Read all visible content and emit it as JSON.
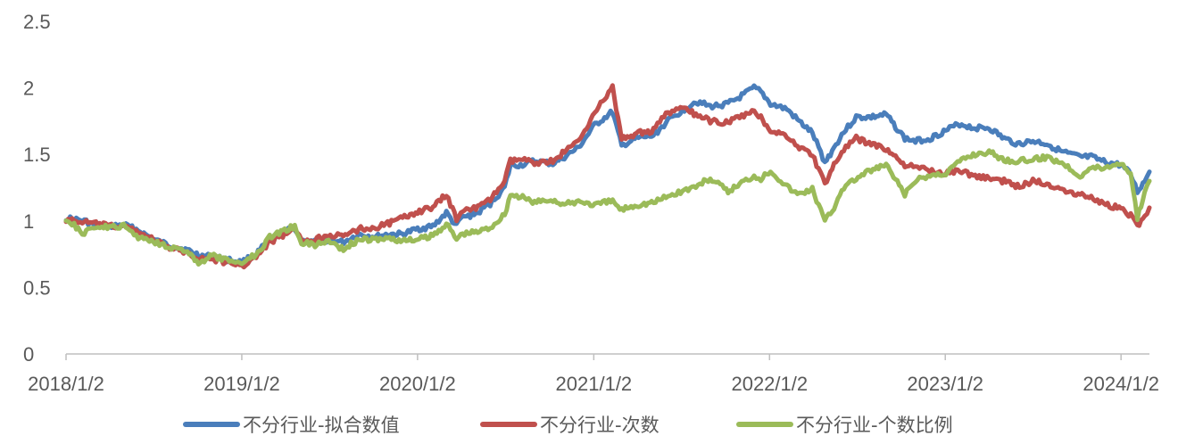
{
  "chart_data": {
    "type": "line",
    "title": "",
    "xlabel": "",
    "ylabel": "",
    "ylim": [
      0,
      2.5
    ],
    "yticks": [
      "0",
      "0.5",
      "1",
      "1.5",
      "2",
      "2.5"
    ],
    "xticks": [
      "2018/1/2",
      "2019/1/2",
      "2020/1/2",
      "2021/1/2",
      "2022/1/2",
      "2023/1/2",
      "2024/1/2"
    ],
    "xrange": [
      "2018/1/2",
      "2024/3/1"
    ],
    "grid": false,
    "legend": "bottom",
    "series": [
      {
        "name": "不分行业-拟合数值",
        "color": "#4A7EBB",
        "points": [
          [
            "2018/1/2",
            1.02
          ],
          [
            "2018/2/9",
            1.0
          ],
          [
            "2018/3/1",
            0.97
          ],
          [
            "2018/4/2",
            0.96
          ],
          [
            "2018/5/2",
            0.97
          ],
          [
            "2018/6/1",
            0.93
          ],
          [
            "2018/7/2",
            0.86
          ],
          [
            "2018/8/1",
            0.82
          ],
          [
            "2018/9/3",
            0.79
          ],
          [
            "2018/10/8",
            0.74
          ],
          [
            "2018/11/1",
            0.73
          ],
          [
            "2018/12/3",
            0.71
          ],
          [
            "2019/1/2",
            0.69
          ],
          [
            "2019/2/1",
            0.75
          ],
          [
            "2019/3/1",
            0.86
          ],
          [
            "2019/4/1",
            0.92
          ],
          [
            "2019/4/22",
            0.95
          ],
          [
            "2019/5/6",
            0.85
          ],
          [
            "2019/6/3",
            0.84
          ],
          [
            "2019/7/1",
            0.86
          ],
          [
            "2019/8/1",
            0.84
          ],
          [
            "2019/9/2",
            0.9
          ],
          [
            "2019/10/8",
            0.88
          ],
          [
            "2019/11/1",
            0.9
          ],
          [
            "2019/12/2",
            0.9
          ],
          [
            "2020/1/2",
            0.94
          ],
          [
            "2020/2/3",
            0.96
          ],
          [
            "2020/3/2",
            1.06
          ],
          [
            "2020/3/23",
            0.96
          ],
          [
            "2020/4/1",
            1.02
          ],
          [
            "2020/5/6",
            1.06
          ],
          [
            "2020/6/1",
            1.13
          ],
          [
            "2020/7/1",
            1.25
          ],
          [
            "2020/7/13",
            1.42
          ],
          [
            "2020/8/3",
            1.42
          ],
          [
            "2020/9/1",
            1.45
          ],
          [
            "2020/10/9",
            1.43
          ],
          [
            "2020/11/2",
            1.48
          ],
          [
            "2020/12/1",
            1.55
          ],
          [
            "2021/1/4",
            1.72
          ],
          [
            "2021/2/10",
            1.82
          ],
          [
            "2021/3/1",
            1.56
          ],
          [
            "2021/3/9",
            1.58
          ],
          [
            "2021/4/1",
            1.62
          ],
          [
            "2021/5/6",
            1.64
          ],
          [
            "2021/6/1",
            1.74
          ],
          [
            "2021/7/1",
            1.82
          ],
          [
            "2021/8/2",
            1.9
          ],
          [
            "2021/9/1",
            1.86
          ],
          [
            "2021/10/8",
            1.88
          ],
          [
            "2021/11/1",
            1.93
          ],
          [
            "2021/12/1",
            2.0
          ],
          [
            "2021/12/15",
            1.97
          ],
          [
            "2022/1/4",
            1.88
          ],
          [
            "2022/2/7",
            1.84
          ],
          [
            "2022/3/1",
            1.76
          ],
          [
            "2022/4/1",
            1.66
          ],
          [
            "2022/4/27",
            1.44
          ],
          [
            "2022/5/16",
            1.55
          ],
          [
            "2022/6/1",
            1.65
          ],
          [
            "2022/7/1",
            1.78
          ],
          [
            "2022/8/1",
            1.78
          ],
          [
            "2022/9/1",
            1.8
          ],
          [
            "2022/10/10",
            1.62
          ],
          [
            "2022/11/1",
            1.6
          ],
          [
            "2022/12/1",
            1.62
          ],
          [
            "2023/1/3",
            1.68
          ],
          [
            "2023/2/1",
            1.73
          ],
          [
            "2023/3/1",
            1.7
          ],
          [
            "2023/4/3",
            1.7
          ],
          [
            "2023/5/4",
            1.62
          ],
          [
            "2023/6/1",
            1.58
          ],
          [
            "2023/7/3",
            1.6
          ],
          [
            "2023/8/1",
            1.58
          ],
          [
            "2023/9/1",
            1.52
          ],
          [
            "2023/10/9",
            1.48
          ],
          [
            "2023/11/1",
            1.48
          ],
          [
            "2023/12/1",
            1.44
          ],
          [
            "2024/1/2",
            1.42
          ],
          [
            "2024/1/22",
            1.35
          ],
          [
            "2024/2/5",
            1.22
          ],
          [
            "2024/2/20",
            1.3
          ],
          [
            "2024/3/1",
            1.37
          ]
        ]
      },
      {
        "name": "不分行业-次数",
        "color": "#C0504D",
        "points": [
          [
            "2018/1/2",
            1.01
          ],
          [
            "2018/2/9",
            0.99
          ],
          [
            "2018/3/1",
            0.98
          ],
          [
            "2018/4/2",
            0.96
          ],
          [
            "2018/5/2",
            0.96
          ],
          [
            "2018/6/1",
            0.92
          ],
          [
            "2018/7/2",
            0.86
          ],
          [
            "2018/8/1",
            0.8
          ],
          [
            "2018/9/3",
            0.77
          ],
          [
            "2018/10/8",
            0.72
          ],
          [
            "2018/11/1",
            0.71
          ],
          [
            "2018/12/3",
            0.69
          ],
          [
            "2019/1/2",
            0.66
          ],
          [
            "2019/2/1",
            0.73
          ],
          [
            "2019/3/1",
            0.84
          ],
          [
            "2019/4/1",
            0.9
          ],
          [
            "2019/4/22",
            0.93
          ],
          [
            "2019/5/6",
            0.85
          ],
          [
            "2019/6/3",
            0.86
          ],
          [
            "2019/7/1",
            0.9
          ],
          [
            "2019/8/1",
            0.88
          ],
          [
            "2019/9/2",
            0.94
          ],
          [
            "2019/10/8",
            0.95
          ],
          [
            "2019/11/1",
            0.98
          ],
          [
            "2019/12/2",
            1.02
          ],
          [
            "2020/1/2",
            1.07
          ],
          [
            "2020/2/3",
            1.1
          ],
          [
            "2020/3/2",
            1.2
          ],
          [
            "2020/3/23",
            1.01
          ],
          [
            "2020/4/1",
            1.08
          ],
          [
            "2020/5/6",
            1.1
          ],
          [
            "2020/6/1",
            1.16
          ],
          [
            "2020/7/1",
            1.3
          ],
          [
            "2020/7/13",
            1.45
          ],
          [
            "2020/8/3",
            1.46
          ],
          [
            "2020/9/1",
            1.44
          ],
          [
            "2020/10/9",
            1.45
          ],
          [
            "2020/11/2",
            1.52
          ],
          [
            "2020/12/1",
            1.6
          ],
          [
            "2021/1/4",
            1.82
          ],
          [
            "2021/2/10",
            2.0
          ],
          [
            "2021/3/1",
            1.62
          ],
          [
            "2021/3/9",
            1.62
          ],
          [
            "2021/4/1",
            1.66
          ],
          [
            "2021/5/6",
            1.68
          ],
          [
            "2021/6/1",
            1.8
          ],
          [
            "2021/7/1",
            1.85
          ],
          [
            "2021/8/2",
            1.8
          ],
          [
            "2021/9/1",
            1.75
          ],
          [
            "2021/10/8",
            1.74
          ],
          [
            "2021/11/1",
            1.78
          ],
          [
            "2021/12/1",
            1.82
          ],
          [
            "2021/12/15",
            1.78
          ],
          [
            "2022/1/4",
            1.68
          ],
          [
            "2022/2/7",
            1.64
          ],
          [
            "2022/3/1",
            1.56
          ],
          [
            "2022/4/1",
            1.5
          ],
          [
            "2022/4/27",
            1.28
          ],
          [
            "2022/5/16",
            1.42
          ],
          [
            "2022/6/1",
            1.52
          ],
          [
            "2022/7/1",
            1.62
          ],
          [
            "2022/8/1",
            1.58
          ],
          [
            "2022/9/1",
            1.54
          ],
          [
            "2022/10/10",
            1.42
          ],
          [
            "2022/11/1",
            1.4
          ],
          [
            "2022/12/1",
            1.38
          ],
          [
            "2023/1/3",
            1.36
          ],
          [
            "2023/2/1",
            1.38
          ],
          [
            "2023/3/1",
            1.34
          ],
          [
            "2023/4/3",
            1.32
          ],
          [
            "2023/5/4",
            1.3
          ],
          [
            "2023/6/1",
            1.26
          ],
          [
            "2023/7/3",
            1.3
          ],
          [
            "2023/8/1",
            1.28
          ],
          [
            "2023/9/1",
            1.24
          ],
          [
            "2023/10/9",
            1.2
          ],
          [
            "2023/11/1",
            1.18
          ],
          [
            "2023/12/1",
            1.12
          ],
          [
            "2024/1/2",
            1.1
          ],
          [
            "2024/1/22",
            1.04
          ],
          [
            "2024/2/5",
            0.96
          ],
          [
            "2024/2/20",
            1.04
          ],
          [
            "2024/3/1",
            1.1
          ]
        ]
      },
      {
        "name": "不分行业-个数比例",
        "color": "#9BBB59",
        "points": [
          [
            "2018/1/2",
            1.02
          ],
          [
            "2018/2/9",
            0.9
          ],
          [
            "2018/3/1",
            0.96
          ],
          [
            "2018/4/2",
            0.95
          ],
          [
            "2018/5/2",
            0.96
          ],
          [
            "2018/6/1",
            0.88
          ],
          [
            "2018/7/2",
            0.85
          ],
          [
            "2018/8/1",
            0.81
          ],
          [
            "2018/9/3",
            0.78
          ],
          [
            "2018/10/8",
            0.68
          ],
          [
            "2018/11/1",
            0.74
          ],
          [
            "2018/12/3",
            0.7
          ],
          [
            "2019/1/2",
            0.69
          ],
          [
            "2019/2/1",
            0.75
          ],
          [
            "2019/3/1",
            0.88
          ],
          [
            "2019/4/1",
            0.93
          ],
          [
            "2019/4/22",
            0.96
          ],
          [
            "2019/5/6",
            0.84
          ],
          [
            "2019/6/3",
            0.82
          ],
          [
            "2019/7/1",
            0.85
          ],
          [
            "2019/8/1",
            0.79
          ],
          [
            "2019/9/2",
            0.86
          ],
          [
            "2019/10/8",
            0.86
          ],
          [
            "2019/11/1",
            0.87
          ],
          [
            "2019/12/2",
            0.85
          ],
          [
            "2020/1/2",
            0.86
          ],
          [
            "2020/2/3",
            0.89
          ],
          [
            "2020/3/2",
            0.98
          ],
          [
            "2020/3/23",
            0.86
          ],
          [
            "2020/4/1",
            0.9
          ],
          [
            "2020/5/6",
            0.92
          ],
          [
            "2020/6/1",
            0.95
          ],
          [
            "2020/7/1",
            1.05
          ],
          [
            "2020/7/13",
            1.2
          ],
          [
            "2020/8/3",
            1.18
          ],
          [
            "2020/9/1",
            1.14
          ],
          [
            "2020/10/9",
            1.16
          ],
          [
            "2020/11/2",
            1.12
          ],
          [
            "2020/12/1",
            1.15
          ],
          [
            "2021/1/4",
            1.12
          ],
          [
            "2021/2/10",
            1.15
          ],
          [
            "2021/3/1",
            1.08
          ],
          [
            "2021/3/9",
            1.1
          ],
          [
            "2021/4/1",
            1.12
          ],
          [
            "2021/5/6",
            1.14
          ],
          [
            "2021/6/1",
            1.18
          ],
          [
            "2021/7/1",
            1.22
          ],
          [
            "2021/8/2",
            1.26
          ],
          [
            "2021/9/1",
            1.32
          ],
          [
            "2021/10/8",
            1.22
          ],
          [
            "2021/11/1",
            1.28
          ],
          [
            "2021/12/1",
            1.34
          ],
          [
            "2021/12/15",
            1.32
          ],
          [
            "2022/1/4",
            1.38
          ],
          [
            "2022/2/7",
            1.26
          ],
          [
            "2022/3/1",
            1.2
          ],
          [
            "2022/4/1",
            1.24
          ],
          [
            "2022/4/27",
            1.0
          ],
          [
            "2022/5/16",
            1.1
          ],
          [
            "2022/6/1",
            1.24
          ],
          [
            "2022/7/1",
            1.32
          ],
          [
            "2022/8/1",
            1.38
          ],
          [
            "2022/9/1",
            1.42
          ],
          [
            "2022/10/10",
            1.2
          ],
          [
            "2022/11/1",
            1.3
          ],
          [
            "2022/12/1",
            1.34
          ],
          [
            "2023/1/3",
            1.36
          ],
          [
            "2023/2/1",
            1.45
          ],
          [
            "2023/3/1",
            1.5
          ],
          [
            "2023/4/3",
            1.52
          ],
          [
            "2023/5/4",
            1.46
          ],
          [
            "2023/6/1",
            1.45
          ],
          [
            "2023/7/3",
            1.46
          ],
          [
            "2023/8/1",
            1.48
          ],
          [
            "2023/9/1",
            1.44
          ],
          [
            "2023/10/9",
            1.34
          ],
          [
            "2023/11/1",
            1.4
          ],
          [
            "2023/12/1",
            1.4
          ],
          [
            "2024/1/2",
            1.44
          ],
          [
            "2024/1/22",
            1.36
          ],
          [
            "2024/2/5",
            1.02
          ],
          [
            "2024/2/20",
            1.22
          ],
          [
            "2024/3/1",
            1.3
          ]
        ]
      }
    ]
  }
}
